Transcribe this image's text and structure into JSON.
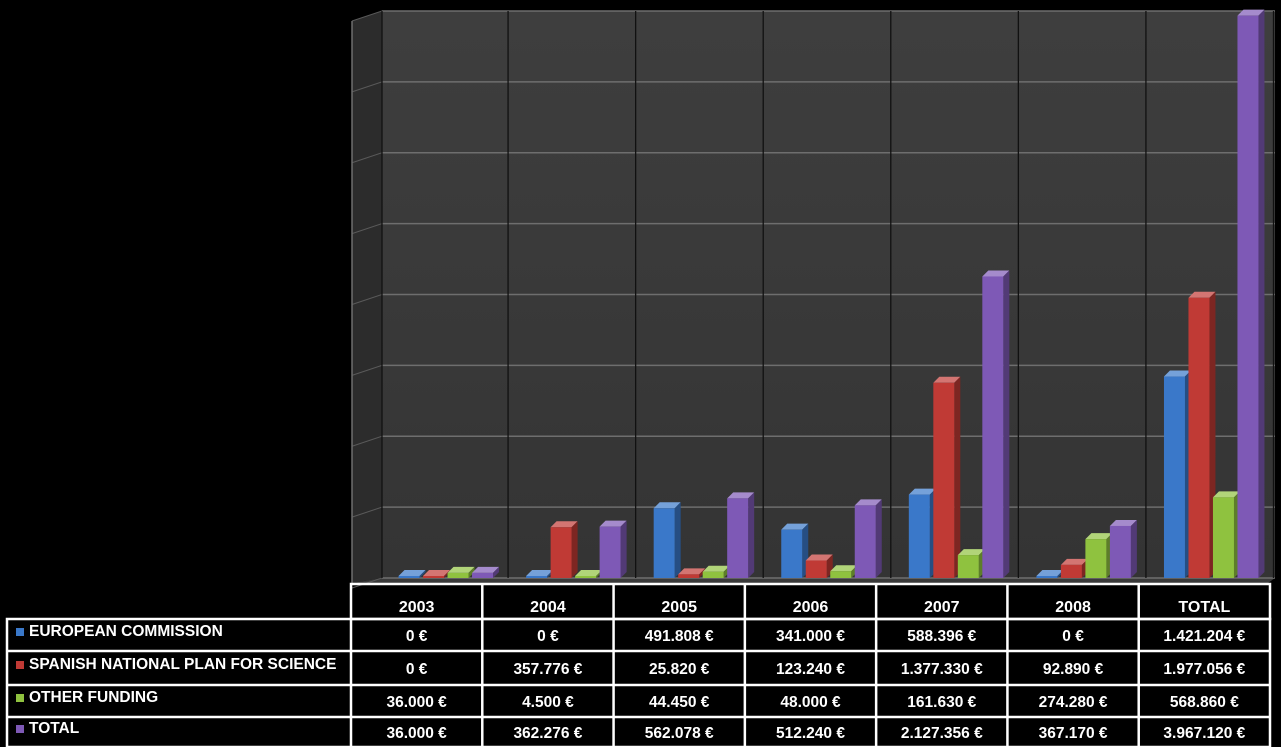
{
  "chart_data": {
    "type": "bar",
    "title": "",
    "xlabel": "",
    "ylabel": "",
    "ylim": [
      0,
      4000000
    ],
    "grid": true,
    "legend": "data-table-left",
    "categories": [
      "2003",
      "2004",
      "2005",
      "2006",
      "2007",
      "2008",
      "TOTAL"
    ],
    "series": [
      {
        "name": "EUROPEAN COMMISSION",
        "color": "#3a78c9",
        "values": [
          0,
          0,
          491808,
          341000,
          588396,
          0,
          1421204
        ],
        "labels": [
          "0 €",
          "0 €",
          "491.808 €",
          "341.000 €",
          "588.396 €",
          "0 €",
          "1.421.204 €"
        ]
      },
      {
        "name": "SPANISH NATIONAL PLAN FOR SCIENCE",
        "color": "#c03a35",
        "values": [
          0,
          357776,
          25820,
          123240,
          1377330,
          92890,
          1977056
        ],
        "labels": [
          "0 €",
          "357.776 €",
          "25.820 €",
          "123.240 €",
          "1.377.330 €",
          "92.890 €",
          "1.977.056 €"
        ]
      },
      {
        "name": "OTHER FUNDING",
        "color": "#8fc23f",
        "values": [
          36000,
          4500,
          44450,
          48000,
          161630,
          274280,
          568860
        ],
        "labels": [
          "36.000 €",
          "4.500 €",
          "44.450 €",
          "48.000 €",
          "161.630 €",
          "274.280 €",
          "568.860 €"
        ]
      },
      {
        "name": "TOTAL",
        "color": "#7e59b6",
        "values": [
          36000,
          362276,
          562078,
          512240,
          2127356,
          367170,
          3967120
        ],
        "labels": [
          "36.000 €",
          "362.276 €",
          "562.078 €",
          "512.240 €",
          "2.127.356 €",
          "367.170 €",
          "3.967.120 €"
        ]
      }
    ]
  }
}
